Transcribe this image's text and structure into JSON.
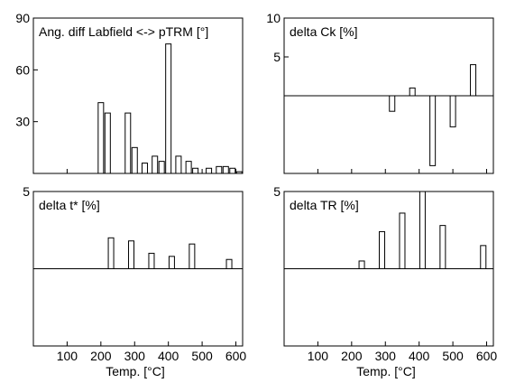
{
  "chart_data": [
    {
      "type": "bar",
      "title": "Ang. diff Labfield <-> pTRM [°]",
      "xlabel": "",
      "ylabel": "",
      "xlim": [
        0,
        620
      ],
      "ylim": [
        0,
        90
      ],
      "yticks": [
        30,
        60,
        90
      ],
      "xticks": [],
      "series": [
        {
          "x": [
            200,
            220,
            280,
            300,
            330,
            360,
            380,
            400,
            430,
            460,
            480,
            520,
            550,
            570,
            590,
            610
          ],
          "values": [
            41,
            35,
            35,
            15,
            6,
            10,
            7,
            75,
            10,
            7,
            3,
            3,
            4,
            4,
            3,
            1
          ]
        }
      ]
    },
    {
      "type": "bar",
      "title": "delta Ck [%]",
      "xlabel": "",
      "ylabel": "",
      "xlim": [
        0,
        620
      ],
      "ylim": [
        -10,
        10
      ],
      "yticks": [
        5,
        10
      ],
      "xticks": [],
      "series": [
        {
          "x": [
            320,
            380,
            440,
            500,
            560
          ],
          "values": [
            -2,
            1,
            -9,
            -4,
            4
          ]
        }
      ]
    },
    {
      "type": "bar",
      "title": "delta t* [%]",
      "xlabel": "",
      "ylabel": "",
      "xlim": [
        0,
        620
      ],
      "ylim": [
        -5,
        5
      ],
      "yticks": [
        5
      ],
      "xticks": [],
      "series": [
        {
          "x": [
            230,
            290,
            350,
            410,
            470,
            580
          ],
          "values": [
            2,
            1.8,
            1,
            0.8,
            1.6,
            0.6
          ]
        }
      ]
    },
    {
      "type": "bar",
      "title": "delta TR [%]",
      "xlabel": "",
      "ylabel": "",
      "xlim": [
        0,
        620
      ],
      "ylim": [
        -5,
        5
      ],
      "yticks": [
        5
      ],
      "xticks": [],
      "series": [
        {
          "x": [
            230,
            290,
            350,
            410,
            470,
            590
          ],
          "values": [
            0.5,
            2.4,
            3.6,
            5,
            2.8,
            1.5
          ]
        }
      ]
    }
  ],
  "axes": {
    "xticks": [
      100,
      200,
      300,
      400,
      500,
      600
    ],
    "xlabel": "Temp. [°C]"
  }
}
